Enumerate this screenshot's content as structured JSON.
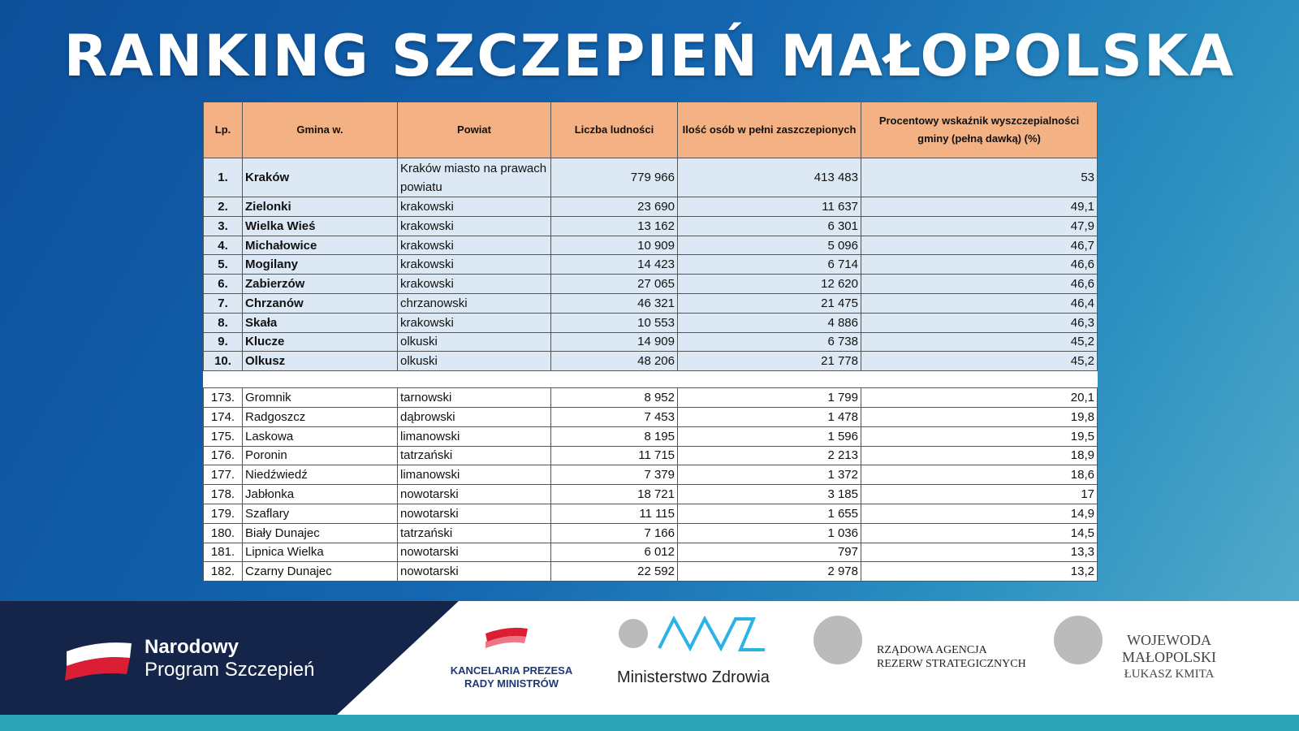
{
  "header": {
    "title": "RANKING SZCZEPIEŃ MAŁOPOLSKA"
  },
  "table": {
    "columns": [
      "Lp.",
      "Gmina w.",
      "Powiat",
      "Liczba ludności",
      "Ilość osób w pełni zaszczepionych",
      "Procentowy wskaźnik wyszczepialności gminy (pełną dawką) (%)"
    ],
    "top_rows": [
      [
        "1.",
        "Kraków",
        "Kraków miasto na prawach powiatu",
        "779 966",
        "413 483",
        "53"
      ],
      [
        "2.",
        "Zielonki",
        "krakowski",
        "23 690",
        "11 637",
        "49,1"
      ],
      [
        "3.",
        "Wielka Wieś",
        "krakowski",
        "13 162",
        "6 301",
        "47,9"
      ],
      [
        "4.",
        "Michałowice",
        "krakowski",
        "10 909",
        "5 096",
        "46,7"
      ],
      [
        "5.",
        "Mogilany",
        "krakowski",
        "14 423",
        "6 714",
        "46,6"
      ],
      [
        "6.",
        "Zabierzów",
        "krakowski",
        "27 065",
        "12 620",
        "46,6"
      ],
      [
        "7.",
        "Chrzanów",
        "chrzanowski",
        "46 321",
        "21 475",
        "46,4"
      ],
      [
        "8.",
        "Skała",
        "krakowski",
        "10 553",
        "4 886",
        "46,3"
      ],
      [
        "9.",
        "Klucze",
        "olkuski",
        "14 909",
        "6 738",
        "45,2"
      ],
      [
        "10.",
        "Olkusz",
        "olkuski",
        "48 206",
        "21 778",
        "45,2"
      ]
    ],
    "bottom_rows": [
      [
        "173.",
        "Gromnik",
        "tarnowski",
        "8 952",
        "1 799",
        "20,1"
      ],
      [
        "174.",
        "Radgoszcz",
        "dąbrowski",
        "7 453",
        "1 478",
        "19,8"
      ],
      [
        "175.",
        "Laskowa",
        "limanowski",
        "8 195",
        "1 596",
        "19,5"
      ],
      [
        "176.",
        "Poronin",
        "tatrzański",
        "11 715",
        "2 213",
        "18,9"
      ],
      [
        "177.",
        "Niedźwiedź",
        "limanowski",
        "7 379",
        "1 372",
        "18,6"
      ],
      [
        "178.",
        "Jabłonka",
        "nowotarski",
        "18 721",
        "3 185",
        "17"
      ],
      [
        "179.",
        "Szaflary",
        "nowotarski",
        "11 115",
        "1 655",
        "14,9"
      ],
      [
        "180.",
        "Biały Dunajec",
        "tatrzański",
        "7 166",
        "1 036",
        "14,5"
      ],
      [
        "181.",
        "Lipnica Wielka",
        "nowotarski",
        "6 012",
        "797",
        "13,3"
      ],
      [
        "182.",
        "Czarny Dunajec",
        "nowotarski",
        "22 592",
        "2 978",
        "13,2"
      ]
    ]
  },
  "footer": {
    "program": [
      "Narodowy",
      "Program Szczepień"
    ],
    "kprm": [
      "KANCELARIA PREZESA",
      "RADY MINISTRÓW"
    ],
    "mz": "Ministerstwo Zdrowia",
    "rars": [
      "RZĄDOWA AGENCJA",
      "REZERW STRATEGICZNYCH"
    ],
    "wojewoda": [
      "WOJEWODA",
      "MAŁOPOLSKI",
      "ŁUKASZ KMITA"
    ]
  }
}
